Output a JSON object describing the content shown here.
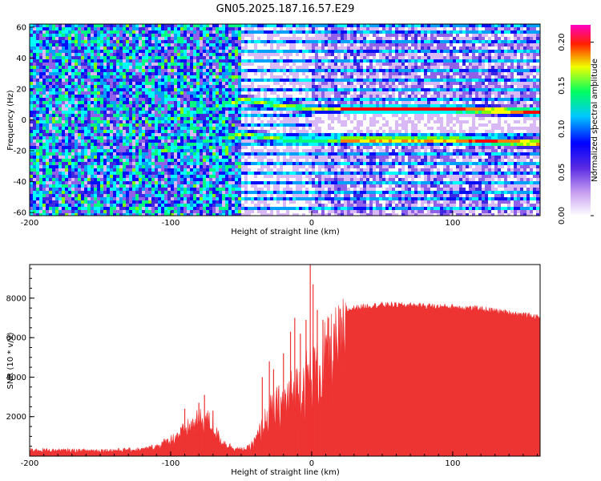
{
  "figure_title": "GN05.2025.187.16.57.E29",
  "chart_data": [
    {
      "type": "heatmap",
      "title": "GN05.2025.187.16.57.E29",
      "xlabel": "Height of straight line (km)",
      "ylabel": "Frequency (Hz)",
      "xlim": [
        -200,
        162
      ],
      "ylim": [
        -62,
        62
      ],
      "xticks": [
        "-200",
        "-100",
        "0",
        "100"
      ],
      "xtick_values": [
        -200,
        -100,
        0,
        100
      ],
      "yticks": [
        "60",
        "40",
        "20",
        "0",
        "-20",
        "-40",
        "-60"
      ],
      "ytick_values": [
        60,
        40,
        20,
        0,
        -20,
        -40,
        -60
      ],
      "colorbar": {
        "label": "Normalized spectral amplitude",
        "range": [
          0,
          0.22
        ],
        "ticks": [
          "0.00",
          "0.05",
          "0.10",
          "0.15",
          "0.20"
        ],
        "tick_values": [
          0.0,
          0.05,
          0.1,
          0.15,
          0.2
        ],
        "colormap": [
          "#ffffff",
          "#8a2be2",
          "#0000ff",
          "#00ffff",
          "#00ff00",
          "#ffff00",
          "#ff0000",
          "#ff00ff"
        ]
      },
      "ridges": [
        {
          "x": [
            -110,
            -80,
            -50,
            -20,
            0,
            50,
            100,
            160
          ],
          "y": [
            0,
            6,
            14,
            10,
            8,
            8,
            8,
            6
          ]
        },
        {
          "x": [
            -110,
            -80,
            -50,
            -20,
            0,
            50,
            100,
            160
          ],
          "y": [
            -20,
            -14,
            -8,
            -12,
            -12,
            -12,
            -12,
            -14
          ]
        }
      ],
      "horizontal_bands_hz": [
        -56,
        -50,
        -44,
        -38,
        -32,
        -26,
        -20,
        -14,
        14,
        20,
        26,
        32,
        38,
        44,
        50,
        56
      ]
    },
    {
      "type": "area",
      "xlabel": "Height of straight line (km)",
      "ylabel": "SNR (10 * v/v)",
      "xlim": [
        -200,
        162
      ],
      "ylim": [
        0,
        9700
      ],
      "xticks": [
        "-200",
        "-100",
        "0",
        "100"
      ],
      "xtick_values": [
        -200,
        -100,
        0,
        100
      ],
      "yticks": [
        "2000",
        "4000",
        "6000",
        "8000"
      ],
      "ytick_values": [
        2000,
        4000,
        6000,
        8000
      ],
      "color": "#ee3333",
      "x": [
        -200,
        -180,
        -160,
        -140,
        -120,
        -110,
        -100,
        -95,
        -90,
        -85,
        -80,
        -75,
        -70,
        -65,
        -60,
        -55,
        -50,
        -45,
        -40,
        -35,
        -30,
        -25,
        -20,
        -15,
        -10,
        -5,
        0,
        5,
        10,
        15,
        20,
        25,
        30,
        40,
        50,
        60,
        70,
        80,
        90,
        100,
        110,
        120,
        130,
        140,
        150,
        162
      ],
      "values": [
        380,
        350,
        340,
        360,
        400,
        600,
        1000,
        1300,
        1600,
        1900,
        2200,
        2300,
        1800,
        1000,
        700,
        500,
        400,
        500,
        1000,
        1900,
        2800,
        3200,
        3600,
        4000,
        4500,
        5000,
        5600,
        5900,
        6300,
        6800,
        7200,
        7500,
        7650,
        7750,
        7800,
        7800,
        7780,
        7750,
        7720,
        7700,
        7650,
        7600,
        7500,
        7400,
        7300,
        7150
      ],
      "spikes": [
        {
          "x": -90,
          "y": 2400
        },
        {
          "x": -80,
          "y": 2700
        },
        {
          "x": -76,
          "y": 3100
        },
        {
          "x": -70,
          "y": 2300
        },
        {
          "x": -35,
          "y": 4000
        },
        {
          "x": -30,
          "y": 4800
        },
        {
          "x": -27,
          "y": 4400
        },
        {
          "x": -20,
          "y": 5200
        },
        {
          "x": -15,
          "y": 6300
        },
        {
          "x": -12,
          "y": 7000
        },
        {
          "x": -8,
          "y": 6200
        },
        {
          "x": -4,
          "y": 6900
        },
        {
          "x": -1,
          "y": 9700
        },
        {
          "x": 1,
          "y": 8700
        },
        {
          "x": 4,
          "y": 7400
        },
        {
          "x": 8,
          "y": 6900
        },
        {
          "x": 12,
          "y": 7000
        }
      ]
    }
  ]
}
